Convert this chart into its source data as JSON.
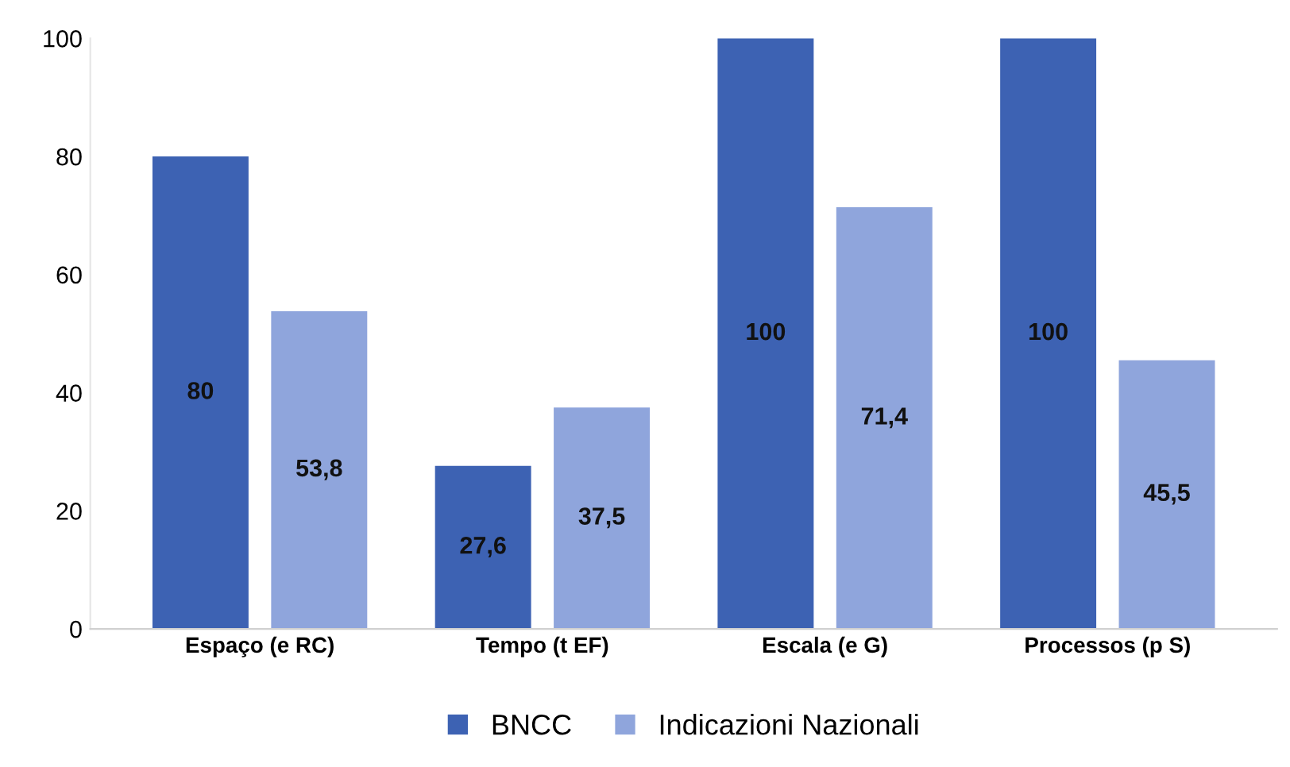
{
  "chart_data": {
    "type": "bar",
    "categories": [
      "Espaço (e RC)",
      "Tempo (t EF)",
      "Escala (e G)",
      "Processos (p S)"
    ],
    "series": [
      {
        "name": "BNCC",
        "color": "#3d62b3",
        "values": [
          80,
          27.6,
          100,
          100
        ],
        "value_labels": [
          "80",
          "27,6",
          "100",
          "100"
        ]
      },
      {
        "name": "Indicazioni Nazionali",
        "color": "#8fa5dc",
        "values": [
          53.8,
          37.5,
          71.4,
          45.5
        ],
        "value_labels": [
          "53,8",
          "37,5",
          "71,4",
          "45,5"
        ]
      }
    ],
    "ylim": [
      0,
      100
    ],
    "yticks": [
      0,
      20,
      40,
      60,
      80,
      100
    ],
    "grid": false,
    "legend": "bottom"
  }
}
